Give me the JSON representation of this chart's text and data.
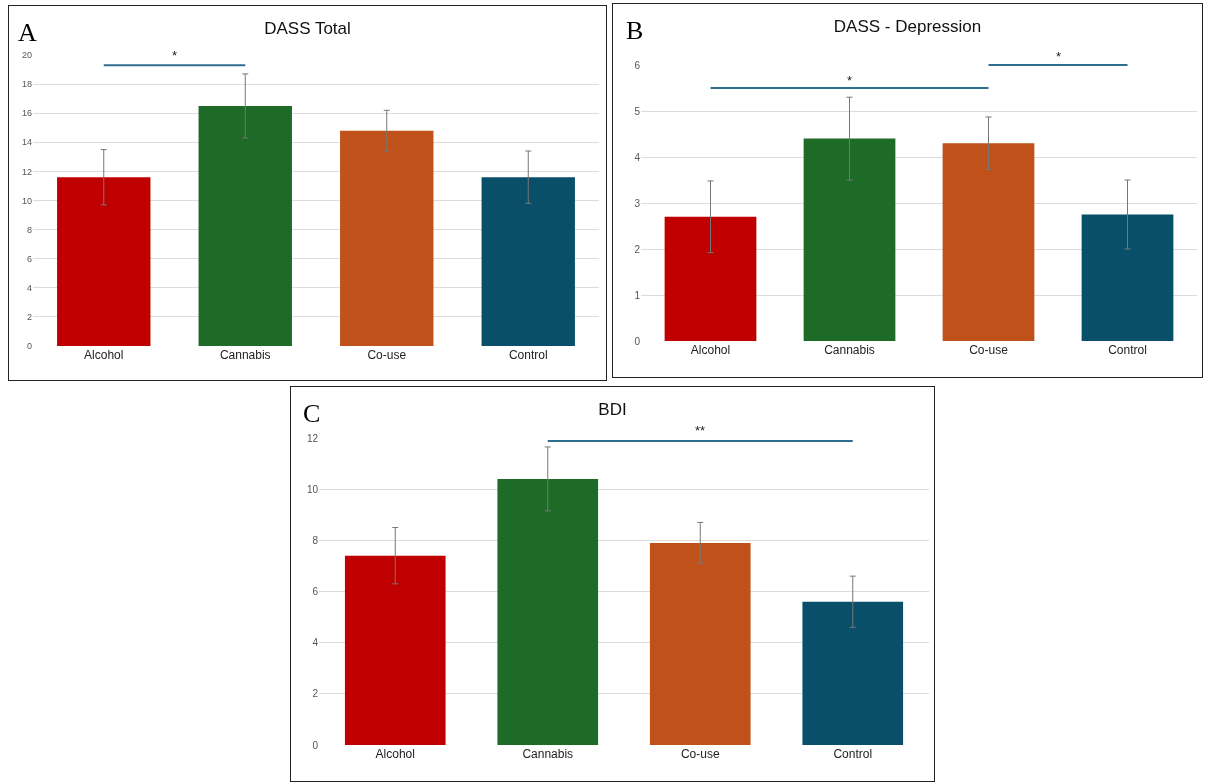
{
  "chart_data": [
    {
      "type": "bar",
      "title": "DASS Total",
      "categories": [
        "Alcohol",
        "Cannabis",
        "Co-use",
        "Control"
      ],
      "values": [
        11.6,
        16.5,
        14.8,
        11.6
      ],
      "colors": [
        "#c00000",
        "#1e6b27",
        "#c0511a",
        "#0a4f69"
      ],
      "errors": [
        1.9,
        2.2,
        1.4,
        1.8
      ],
      "ylim": [
        0,
        20
      ],
      "yticks": [
        0,
        2,
        4,
        6,
        8,
        10,
        12,
        14,
        16,
        18,
        20
      ],
      "grid": "y",
      "annotations": [
        "A",
        "*"
      ]
    },
    {
      "type": "bar",
      "title": "DASS - Depression",
      "categories": [
        "Alcohol",
        "Cannabis",
        "Co-use",
        "Control"
      ],
      "values": [
        2.7,
        4.4,
        4.3,
        2.75
      ],
      "colors": [
        "#c00000",
        "#1e6b27",
        "#c0511a",
        "#0a4f69"
      ],
      "errors": [
        0.78,
        0.9,
        0.57,
        0.75
      ],
      "ylim": [
        0,
        6
      ],
      "yticks": [
        0,
        1,
        2,
        3,
        4,
        5,
        6
      ],
      "grid": "y",
      "annotations": [
        "B",
        "*",
        "*"
      ]
    },
    {
      "type": "bar",
      "title": "BDI",
      "categories": [
        "Alcohol",
        "Cannabis",
        "Co-use",
        "Control"
      ],
      "values": [
        7.4,
        10.4,
        7.9,
        5.6
      ],
      "colors": [
        "#c00000",
        "#1e6b27",
        "#c0511a",
        "#0a4f69"
      ],
      "errors": [
        1.1,
        1.25,
        0.8,
        1.0
      ],
      "ylim": [
        0,
        12
      ],
      "yticks": [
        0,
        2,
        4,
        6,
        8,
        10,
        12
      ],
      "grid": "y",
      "annotations": [
        "C",
        "**"
      ]
    }
  ]
}
